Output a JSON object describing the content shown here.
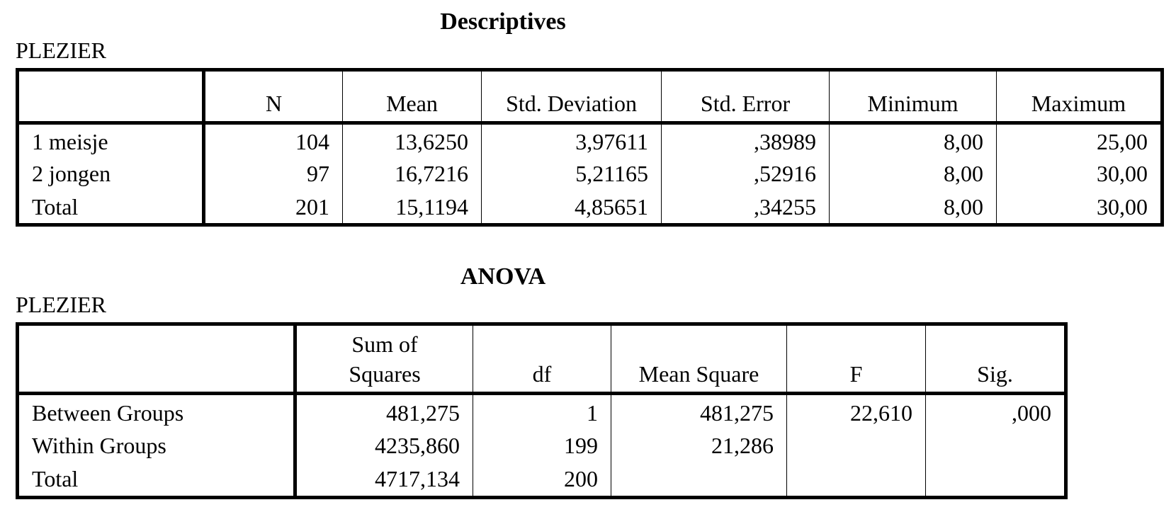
{
  "descriptives": {
    "title": "Descriptives",
    "dependent": "PLEZIER",
    "columns": [
      "N",
      "Mean",
      "Std. Deviation",
      "Std. Error",
      "Minimum",
      "Maximum"
    ],
    "rows": [
      {
        "label": "1  meisje",
        "cells": [
          "104",
          "13,6250",
          "3,97611",
          ",38989",
          "8,00",
          "25,00"
        ]
      },
      {
        "label": "2  jongen",
        "cells": [
          "97",
          "16,7216",
          "5,21165",
          ",52916",
          "8,00",
          "30,00"
        ]
      },
      {
        "label": "Total",
        "cells": [
          "201",
          "15,1194",
          "4,85651",
          ",34255",
          "8,00",
          "30,00"
        ]
      }
    ]
  },
  "anova": {
    "title": "ANOVA",
    "dependent": "PLEZIER",
    "columns": [
      {
        "line1": "Sum of",
        "line2": "Squares"
      },
      {
        "line1": "",
        "line2": "df"
      },
      {
        "line1": "",
        "line2": "Mean Square"
      },
      {
        "line1": "",
        "line2": "F"
      },
      {
        "line1": "",
        "line2": "Sig."
      }
    ],
    "rows": [
      {
        "label": "Between Groups",
        "cells": [
          "481,275",
          "1",
          "481,275",
          "22,610",
          ",000"
        ]
      },
      {
        "label": "Within Groups",
        "cells": [
          "4235,860",
          "199",
          "21,286",
          "",
          ""
        ]
      },
      {
        "label": "Total",
        "cells": [
          "4717,134",
          "200",
          "",
          "",
          ""
        ]
      }
    ]
  }
}
